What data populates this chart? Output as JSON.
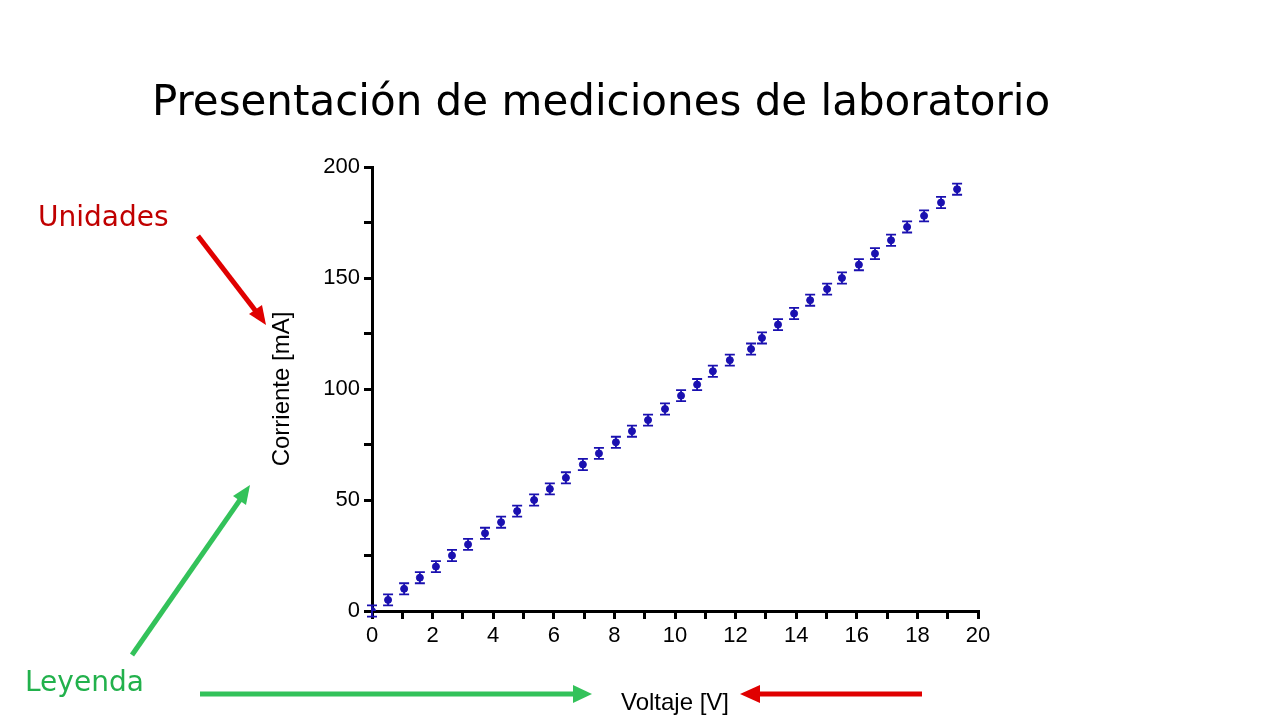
{
  "chart_data": {
    "type": "scatter",
    "title": "Presentación de mediciones de laboratorio",
    "xlabel": "Voltaje [V]",
    "ylabel": "Corriente [mA]",
    "annotations": [
      "Unidades",
      "Leyenda"
    ],
    "x": [
      0,
      0.53,
      1.06,
      1.58,
      2.11,
      2.64,
      3.17,
      3.73,
      4.26,
      4.79,
      5.35,
      5.87,
      6.4,
      6.96,
      7.49,
      8.05,
      8.58,
      9.11,
      9.67,
      10.2,
      10.73,
      11.25,
      11.81,
      12.51,
      12.87,
      13.4,
      13.93,
      14.46,
      15.02,
      15.51,
      16.07,
      16.6,
      17.13,
      17.66,
      18.22,
      18.78,
      19.31
    ],
    "series": [
      {
        "color": "#1a10b0",
        "values": [
          0,
          5,
          10,
          15,
          20,
          25,
          30,
          35,
          40,
          45,
          50,
          55,
          60,
          66,
          71,
          76,
          81,
          86,
          91,
          97,
          102,
          108,
          113,
          118,
          123,
          129,
          134,
          140,
          145,
          150,
          156,
          161,
          167,
          173,
          178,
          184,
          190
        ],
        "errors": [
          2.5,
          2.5,
          2.5,
          2.5,
          2.5,
          2.5,
          2.5,
          2.5,
          2.5,
          2.5,
          2.5,
          2.5,
          2.5,
          2.5,
          2.5,
          2.5,
          2.5,
          2.5,
          2.5,
          2.5,
          2.5,
          2.5,
          2.5,
          2.5,
          2.5,
          2.5,
          2.5,
          2.5,
          2.5,
          2.5,
          2.5,
          2.5,
          2.5,
          2.5,
          2.5,
          2.5,
          2.5
        ]
      }
    ],
    "xlim": [
      0,
      20
    ],
    "xticks": [
      0,
      {
        "value": 1,
        "label": null
      },
      2,
      {
        "value": 3,
        "label": null
      },
      4,
      {
        "value": 5,
        "label": null
      },
      6,
      {
        "value": 7,
        "label": null
      },
      8,
      {
        "value": 9,
        "label": null
      },
      10,
      {
        "value": 11,
        "label": null
      },
      12,
      {
        "value": 13,
        "label": null
      },
      14,
      {
        "value": 15,
        "label": null
      },
      16,
      {
        "value": 17,
        "label": null
      },
      18,
      {
        "value": 19,
        "label": null
      },
      20
    ],
    "ylim": [
      0,
      200
    ],
    "yticks": [
      0,
      {
        "value": 25,
        "label": null
      },
      50,
      {
        "value": 75,
        "label": null
      },
      100,
      {
        "value": 125,
        "label": null
      },
      150,
      {
        "value": 175,
        "label": null
      },
      200
    ],
    "marker": "circle",
    "grid": false,
    "legend": false
  }
}
